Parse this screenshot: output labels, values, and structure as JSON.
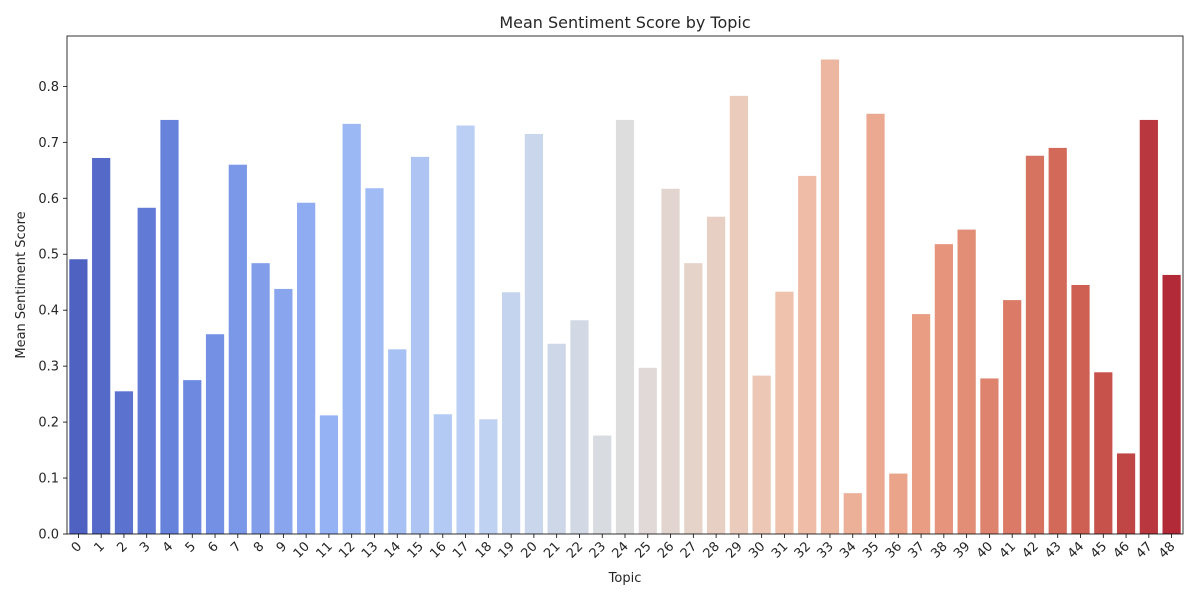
{
  "chart_data": {
    "type": "bar",
    "title": "Mean Sentiment Score by Topic",
    "xlabel": "Topic",
    "ylabel": "Mean Sentiment Score",
    "categories": [
      "0",
      "1",
      "2",
      "3",
      "4",
      "5",
      "6",
      "7",
      "8",
      "9",
      "10",
      "11",
      "12",
      "13",
      "14",
      "15",
      "16",
      "17",
      "18",
      "19",
      "20",
      "21",
      "22",
      "23",
      "24",
      "25",
      "26",
      "27",
      "28",
      "29",
      "30",
      "31",
      "32",
      "33",
      "34",
      "35",
      "36",
      "37",
      "38",
      "39",
      "40",
      "41",
      "42",
      "43",
      "44",
      "45",
      "46",
      "47",
      "48"
    ],
    "values": [
      0.491,
      0.672,
      0.255,
      0.583,
      0.74,
      0.275,
      0.357,
      0.66,
      0.484,
      0.438,
      0.592,
      0.212,
      0.733,
      0.618,
      0.33,
      0.674,
      0.214,
      0.73,
      0.205,
      0.432,
      0.715,
      0.34,
      0.382,
      0.176,
      0.74,
      0.297,
      0.617,
      0.484,
      0.567,
      0.783,
      0.283,
      0.433,
      0.64,
      0.848,
      0.073,
      0.751,
      0.108,
      0.393,
      0.518,
      0.544,
      0.278,
      0.418,
      0.676,
      0.69,
      0.445,
      0.289,
      0.144,
      0.74,
      0.463
    ],
    "ylim": [
      0,
      0.89
    ],
    "yticks": [
      "0.0",
      "0.1",
      "0.2",
      "0.3",
      "0.4",
      "0.5",
      "0.6",
      "0.7",
      "0.8"
    ],
    "palette": "coolwarm",
    "grid": false,
    "legend": "none"
  }
}
